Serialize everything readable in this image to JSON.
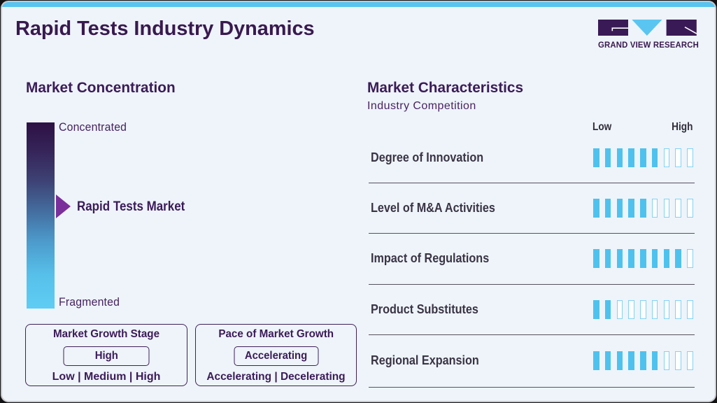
{
  "page": {
    "title": "Rapid Tests Industry Dynamics",
    "brand": {
      "name": "GRAND VIEW RESEARCH",
      "accent_blue": "#58c4f0",
      "brand_purple": "#3b1b57"
    }
  },
  "market_concentration": {
    "heading": "Market Concentration",
    "scale_top_label": "Concentrated",
    "scale_bottom_label": "Fragmented",
    "marker_label": "Rapid Tests Market",
    "marker_position_pct_from_top": 45
  },
  "growth_stage_box": {
    "title": "Market Growth Stage",
    "value": "High",
    "options": "Low | Medium | High"
  },
  "growth_pace_box": {
    "title": "Pace of Market Growth",
    "value": "Accelerating",
    "options": "Accelerating | Decelerating"
  },
  "market_characteristics": {
    "heading": "Market Characteristics",
    "subheading": "Industry Competition",
    "scale_low_label": "Low",
    "scale_high_label": "High",
    "rows": [
      {
        "label": "Degree of Innovation",
        "value": 6,
        "max": 9
      },
      {
        "label": "Level of M&A Activities",
        "value": 5,
        "max": 9
      },
      {
        "label": "Impact of Regulations",
        "value": 8,
        "max": 9
      },
      {
        "label": "Product Substitutes",
        "value": 2,
        "max": 9
      },
      {
        "label": "Regional Expansion",
        "value": 6,
        "max": 9
      }
    ]
  },
  "chart_data": {
    "type": "bar",
    "title": "Rapid Tests Industry Dynamics",
    "subtitle": "Market Characteristics - Industry Competition",
    "categories": [
      "Degree of Innovation",
      "Level of M&A Activities",
      "Impact of Regulations",
      "Product Substitutes",
      "Regional Expansion"
    ],
    "values": [
      6,
      5,
      8,
      2,
      6
    ],
    "value_range": [
      0,
      9
    ],
    "scale_labels": [
      "Low",
      "High"
    ],
    "market_concentration": {
      "scale": [
        "Concentrated",
        "Fragmented"
      ],
      "marker": "Rapid Tests Market",
      "marker_position_pct_from_concentrated": 45
    },
    "market_growth_stage": "High",
    "pace_of_market_growth": "Accelerating"
  }
}
